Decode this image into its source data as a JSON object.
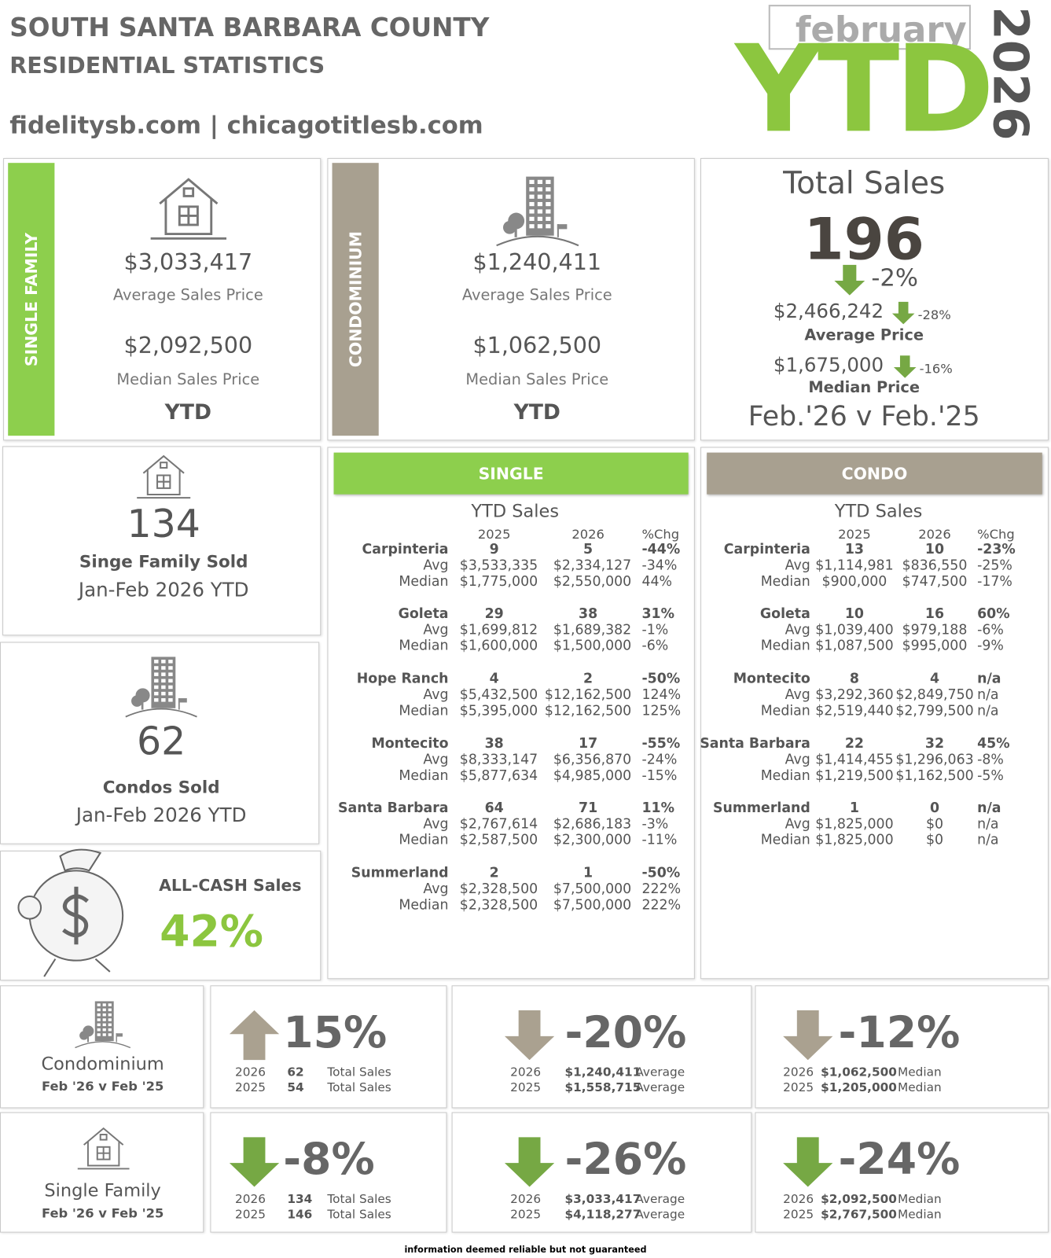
{
  "header": {
    "title": "SOUTH SANTA BARBARA COUNTY",
    "subtitle": "RESIDENTIAL STATISTICS",
    "websites": "fidelitysb.com | chicagotitlesb.com",
    "month": "february",
    "ytd": "YTD",
    "year": "2026"
  },
  "single_family": {
    "label": "SINGLE FAMILY",
    "avg_price": "$3,033,417",
    "avg_label": "Average Sales Price",
    "median_price": "$2,092,500",
    "median_label": "Median Sales Price",
    "period": "YTD"
  },
  "condominium": {
    "label": "CONDOMINIUM",
    "avg_price": "$1,240,411",
    "avg_label": "Average Sales Price",
    "median_price": "$1,062,500",
    "median_label": "Median Sales Price",
    "period": "YTD"
  },
  "total_sales": {
    "title": "Total Sales",
    "count": "196",
    "change": "-2%",
    "avg_price": "$2,466,242",
    "avg_change": "-28%",
    "avg_label": "Average Price",
    "median_price": "$1,675,000",
    "median_change": "-16%",
    "median_label": "Median Price",
    "period": "Feb.'26 v Feb.'25"
  },
  "single_family_sold": {
    "count": "134",
    "label": "Singe Family Sold",
    "period": "Jan-Feb 2026 YTD"
  },
  "condos_sold": {
    "count": "62",
    "label": "Condos Sold",
    "period": "Jan-Feb 2026 YTD"
  },
  "all_cash": {
    "label": "ALL-CASH Sales",
    "value": "42%"
  },
  "single_table": {
    "header": "SINGLE",
    "subtitle": "YTD Sales",
    "columns": [
      "2025",
      "2026",
      "%Chg"
    ],
    "row_labels": [
      "Avg",
      "Median"
    ],
    "areas": [
      {
        "name": "Carpinteria",
        "sales": [
          "9",
          "5",
          "-44%"
        ],
        "avg": [
          "$3,533,335",
          "$2,334,127",
          "-34%"
        ],
        "median": [
          "$1,775,000",
          "$2,550,000",
          "44%"
        ]
      },
      {
        "name": "Goleta",
        "sales": [
          "29",
          "38",
          "31%"
        ],
        "avg": [
          "$1,699,812",
          "$1,689,382",
          "-1%"
        ],
        "median": [
          "$1,600,000",
          "$1,500,000",
          "-6%"
        ]
      },
      {
        "name": "Hope Ranch",
        "sales": [
          "4",
          "2",
          "-50%"
        ],
        "avg": [
          "$5,432,500",
          "$12,162,500",
          "124%"
        ],
        "median": [
          "$5,395,000",
          "$12,162,500",
          "125%"
        ]
      },
      {
        "name": "Montecito",
        "sales": [
          "38",
          "17",
          "-55%"
        ],
        "avg": [
          "$8,333,147",
          "$6,356,870",
          "-24%"
        ],
        "median": [
          "$5,877,634",
          "$4,985,000",
          "-15%"
        ]
      },
      {
        "name": "Santa Barbara",
        "sales": [
          "64",
          "71",
          "11%"
        ],
        "avg": [
          "$2,767,614",
          "$2,686,183",
          "-3%"
        ],
        "median": [
          "$2,587,500",
          "$2,300,000",
          "-11%"
        ]
      },
      {
        "name": "Summerland",
        "sales": [
          "2",
          "1",
          "-50%"
        ],
        "avg": [
          "$2,328,500",
          "$7,500,000",
          "222%"
        ],
        "median": [
          "$2,328,500",
          "$7,500,000",
          "222%"
        ]
      }
    ]
  },
  "condo_table": {
    "header": "CONDO",
    "subtitle": "YTD Sales",
    "columns": [
      "2025",
      "2026",
      "%Chg"
    ],
    "row_labels": [
      "Avg",
      "Median"
    ],
    "areas": [
      {
        "name": "Carpinteria",
        "sales": [
          "13",
          "10",
          "-23%"
        ],
        "avg": [
          "$1,114,981",
          "$836,550",
          "-25%"
        ],
        "median": [
          "$900,000",
          "$747,500",
          "-17%"
        ]
      },
      {
        "name": "Goleta",
        "sales": [
          "10",
          "16",
          "60%"
        ],
        "avg": [
          "$1,039,400",
          "$979,188",
          "-6%"
        ],
        "median": [
          "$1,087,500",
          "$995,000",
          "-9%"
        ]
      },
      {
        "name": "Montecito",
        "sales": [
          "8",
          "4",
          "n/a"
        ],
        "avg": [
          "$3,292,360",
          "$2,849,750",
          "n/a"
        ],
        "median": [
          "$2,519,440",
          "$2,799,500",
          "n/a"
        ]
      },
      {
        "name": "Santa Barbara",
        "sales": [
          "22",
          "32",
          "45%"
        ],
        "avg": [
          "$1,414,455",
          "$1,296,063",
          "-8%"
        ],
        "median": [
          "$1,219,500",
          "$1,162,500",
          "-5%"
        ]
      },
      {
        "name": "Summerland",
        "sales": [
          "1",
          "0",
          "n/a"
        ],
        "avg": [
          "$1,825,000",
          "$0",
          "n/a"
        ],
        "median": [
          "$1,825,000",
          "$0",
          "n/a"
        ]
      }
    ]
  },
  "comparisons": [
    {
      "label": "Condominium",
      "period": "Feb '26 v Feb '25",
      "arrow_color": "#aaa190",
      "cards": [
        {
          "change": "15%",
          "direction": "up",
          "rows": [
            [
              "2026",
              "62",
              "Total Sales"
            ],
            [
              "2025",
              "54",
              "Total Sales"
            ]
          ]
        },
        {
          "change": "-20%",
          "direction": "down",
          "rows": [
            [
              "2026",
              "$1,240,411",
              "Average"
            ],
            [
              "2025",
              "$1,558,715",
              "Average"
            ]
          ]
        },
        {
          "change": "-12%",
          "direction": "down",
          "rows": [
            [
              "2026",
              "$1,062,500",
              "Median"
            ],
            [
              "2025",
              "$1,205,000",
              "Median"
            ]
          ]
        }
      ]
    },
    {
      "label": "Single Family",
      "period": "Feb '26 v Feb '25",
      "arrow_color": "#76a844",
      "cards": [
        {
          "change": "-8%",
          "direction": "down",
          "rows": [
            [
              "2026",
              "134",
              "Total Sales"
            ],
            [
              "2025",
              "146",
              "Total Sales"
            ]
          ]
        },
        {
          "change": "-26%",
          "direction": "down",
          "rows": [
            [
              "2026",
              "$3,033,417",
              "Average"
            ],
            [
              "2025",
              "$4,118,277",
              "Average"
            ]
          ]
        },
        {
          "change": "-24%",
          "direction": "down",
          "rows": [
            [
              "2026",
              "$2,092,500",
              "Median"
            ],
            [
              "2025",
              "$2,767,500",
              "Median"
            ]
          ]
        }
      ]
    }
  ],
  "footer": "information deemed reliable but not guaranteed"
}
